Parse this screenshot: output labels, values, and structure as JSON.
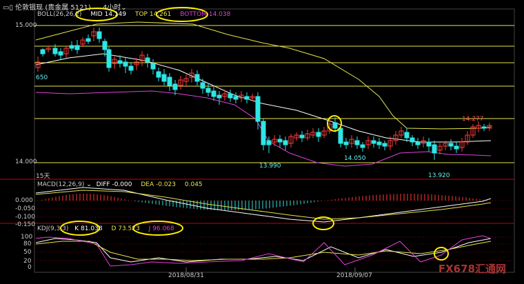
{
  "window": {
    "menu_icon": "menu-icon",
    "title": "伦敦银现 (贵金属 5121)",
    "timeframe": "4小时"
  },
  "boll": {
    "label": "BOLL(26,26,2)",
    "mid": "MID 14.149",
    "top": "TOP 14.261",
    "bottom": "BOTTOM 14.038"
  },
  "price_axis": {
    "top": "15.000",
    "bottom": "14.000",
    "left_note": "650",
    "period": "15天"
  },
  "annotations": {
    "high": "14.277",
    "low_a": "13.990",
    "low_b": "14.050",
    "low_c": "13.920"
  },
  "macd": {
    "label": "MACD(12,26,9)",
    "diff": "DIFF -0.000",
    "dea": "DEA -0.023",
    "macd": "0.045",
    "ticks": [
      "0.000",
      "-0.050",
      "-0.100",
      "-0.150"
    ]
  },
  "kdj": {
    "label": "KDJ(9,3,3)",
    "k": "K 81.038",
    "d": "D 73.523",
    "j": "J 96.068",
    "ticks": [
      "100",
      "80",
      "50",
      "20",
      "0"
    ]
  },
  "dates": [
    "2018/08/31",
    "2018/09/07"
  ],
  "watermark": {
    "prefix": "FX678",
    "suffix": "汇通网"
  },
  "colors": {
    "up": "#ff3b3b",
    "down": "#2ee6e6",
    "mid": "#ffffff",
    "band": "#e6e64d",
    "lower": "#e040e0",
    "highlight": "#ffee00"
  }
}
